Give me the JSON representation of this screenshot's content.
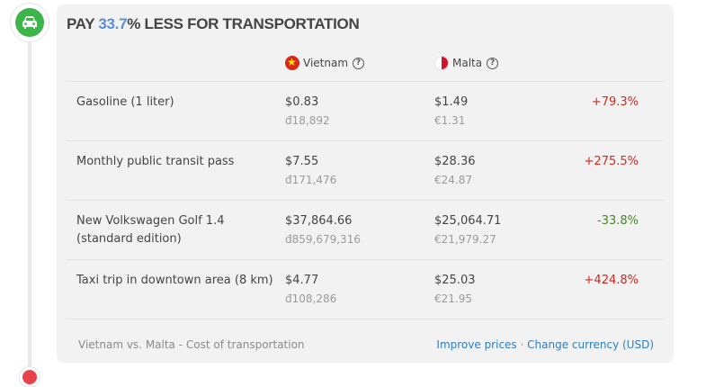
{
  "heading": {
    "prefix": "PAY ",
    "percent": "33.7",
    "suffix": "% LESS FOR TRANSPORTATION"
  },
  "icons": {
    "category": "car-icon",
    "help": "question-icon"
  },
  "colors": {
    "category_green": "#3cb54a",
    "percent_blue": "#5b8ed6",
    "increase_red": "#d0281e",
    "decrease_green": "#3b8a22",
    "link_blue": "#2e7fc1"
  },
  "columns": {
    "a": {
      "name": "Vietnam",
      "help": "?"
    },
    "b": {
      "name": "Malta",
      "help": "?"
    }
  },
  "rows": [
    {
      "label": "Gasoline (1 liter)",
      "a_usd": "$0.83",
      "a_local": "đ18,892",
      "b_usd": "$1.49",
      "b_local": "€1.31",
      "diff": "+79.3%",
      "trend": "up"
    },
    {
      "label": "Monthly public transit pass",
      "a_usd": "$7.55",
      "a_local": "đ171,476",
      "b_usd": "$28.36",
      "b_local": "€24.87",
      "diff": "+275.5%",
      "trend": "up"
    },
    {
      "label": "New Volkswagen Golf 1.4 (standard edition)",
      "a_usd": "$37,864.66",
      "a_local": "đ859,679,316",
      "b_usd": "$25,064.71",
      "b_local": "€21,979.27",
      "diff": "-33.8%",
      "trend": "down"
    },
    {
      "label": "Taxi trip in downtown area (8 km)",
      "a_usd": "$4.77",
      "a_local": "đ108,286",
      "b_usd": "$25.03",
      "b_local": "€21.95",
      "diff": "+424.8%",
      "trend": "up"
    }
  ],
  "footer": {
    "caption": "Vietnam vs. Malta - Cost of transportation",
    "improve_link": "Improve prices",
    "separator": " · ",
    "currency_link": "Change currency (USD)"
  }
}
